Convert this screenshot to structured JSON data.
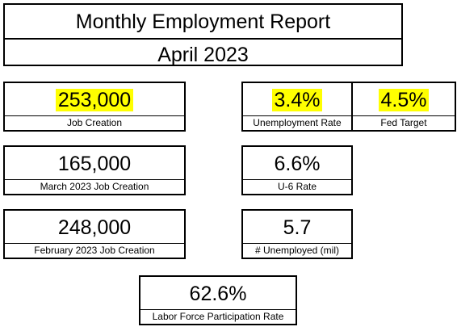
{
  "report": {
    "title": "Monthly Employment Report",
    "period": "April 2023"
  },
  "metrics": {
    "job_creation": {
      "value": "253,000",
      "label": "Job Creation",
      "highlight": true
    },
    "unemployment_rate": {
      "value": "3.4%",
      "label": "Unemployment Rate",
      "highlight": true
    },
    "fed_target": {
      "value": "4.5%",
      "label": "Fed Target",
      "highlight": true
    },
    "march_job_creation": {
      "value": "165,000",
      "label": "March 2023  Job Creation"
    },
    "u6_rate": {
      "value": "6.6%",
      "label": "U-6 Rate"
    },
    "february_job_creation": {
      "value": "248,000",
      "label": "February 2023  Job Creation"
    },
    "unemployed": {
      "value": "5.7",
      "label": "# Unemployed (mil)"
    },
    "participation_rate": {
      "value": "62.6%",
      "label": "Labor Force Participation Rate"
    }
  },
  "colors": {
    "highlight": "#ffff00",
    "border": "#000000",
    "background": "#ffffff"
  }
}
